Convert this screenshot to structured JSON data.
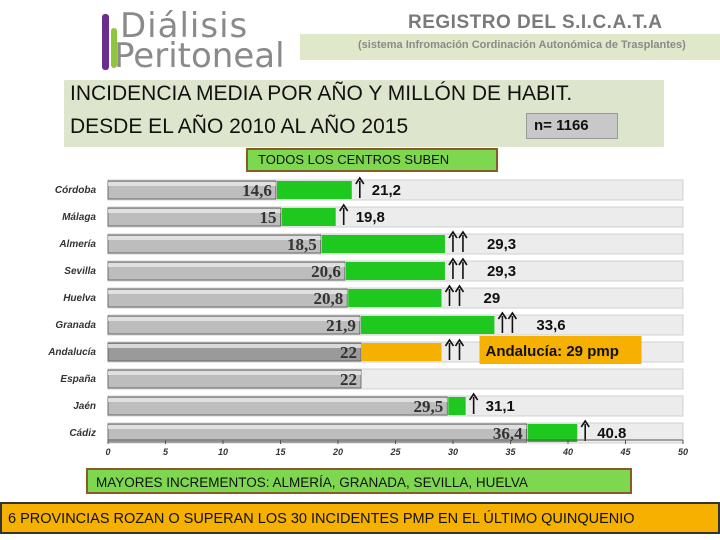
{
  "logo": {
    "line1": "Diálisis",
    "line2": "Peritoneal"
  },
  "registry": {
    "title": "REGISTRO DEL S.I.C.A.T.A",
    "subtitle": "(sistema Infromación Cordinación Autonómica de Trasplantes)"
  },
  "header": {
    "line1": "INCIDENCIA MEDIA POR AÑO Y MILLÓN DE HABIT.",
    "line2": "DESDE EL AÑO 2010 AL AÑO 2015",
    "n": "n= 1166"
  },
  "todos_label": "TODOS LOS CENTROS SUBEN",
  "mayores_label": "MAYORES INCREMENTOS: ALMERÍA, GRANADA, SEVILLA, HUELVA",
  "footer_text": "6 PROVINCIAS ROZAN O SUPERAN LOS 30 INCIDENTES PMP EN EL ÚLTIMO QUINQUENIO",
  "colors": {
    "accent": "#1ec81e",
    "andalucia": "#f5b000",
    "bar": "#c9c9c9"
  },
  "chart_data": {
    "type": "bar",
    "orientation": "horizontal",
    "xlim": [
      0,
      80
    ],
    "xticks": [
      "0",
      "5",
      "10",
      "15",
      "20",
      "25",
      "30",
      "35",
      "40",
      "45",
      "50"
    ],
    "rows": [
      {
        "name": "Córdoba",
        "base": 14.6,
        "base_label": "14,6",
        "new": 21.2,
        "new_label": "21,2",
        "arrows": 1,
        "highlight": false
      },
      {
        "name": "Málaga",
        "base": 15,
        "base_label": "15",
        "new": 19.8,
        "new_label": "19,8",
        "arrows": 1,
        "highlight": false
      },
      {
        "name": "Almería",
        "base": 18.5,
        "base_label": "18,5",
        "new": 29.3,
        "new_label": "29,3",
        "arrows": 2,
        "highlight": false
      },
      {
        "name": "Sevilla",
        "base": 20.6,
        "base_label": "20,6",
        "new": 29.3,
        "new_label": "29,3",
        "arrows": 2,
        "highlight": false
      },
      {
        "name": "Huelva",
        "base": 20.8,
        "base_label": "20,8",
        "new": 29,
        "new_label": "29",
        "arrows": 2,
        "highlight": false
      },
      {
        "name": "Granada",
        "base": 21.9,
        "base_label": "21,9",
        "new": 33.6,
        "new_label": "33,6",
        "arrows": 2,
        "highlight": false
      },
      {
        "name": "Andalucía",
        "base": 22,
        "base_label": "22",
        "new": 29,
        "new_label": "Andalucía: 29 pmp",
        "arrows": 2,
        "highlight": true
      },
      {
        "name": "España",
        "base": 22,
        "base_label": "22",
        "new": null,
        "new_label": "",
        "arrows": 0,
        "highlight": false
      },
      {
        "name": "Jaén",
        "base": 29.5,
        "base_label": "29,5",
        "new": 31.1,
        "new_label": "31,1",
        "arrows": 1,
        "highlight": false
      },
      {
        "name": "Cádiz",
        "base": 36.4,
        "base_label": "36,4",
        "new": 40.8,
        "new_label": "40.8",
        "arrows": 1,
        "highlight": false
      }
    ]
  }
}
